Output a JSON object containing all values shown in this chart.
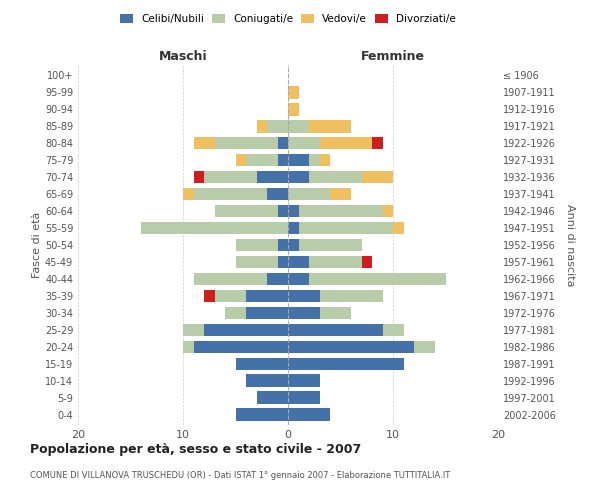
{
  "age_groups": [
    "0-4",
    "5-9",
    "10-14",
    "15-19",
    "20-24",
    "25-29",
    "30-34",
    "35-39",
    "40-44",
    "45-49",
    "50-54",
    "55-59",
    "60-64",
    "65-69",
    "70-74",
    "75-79",
    "80-84",
    "85-89",
    "90-94",
    "95-99",
    "100+"
  ],
  "birth_years": [
    "2002-2006",
    "1997-2001",
    "1992-1996",
    "1987-1991",
    "1982-1986",
    "1977-1981",
    "1972-1976",
    "1967-1971",
    "1962-1966",
    "1957-1961",
    "1952-1956",
    "1947-1951",
    "1942-1946",
    "1937-1941",
    "1932-1936",
    "1927-1931",
    "1922-1926",
    "1917-1921",
    "1912-1916",
    "1907-1911",
    "≤ 1906"
  ],
  "maschi": {
    "celibi": [
      5,
      3,
      4,
      5,
      9,
      8,
      4,
      4,
      2,
      1,
      1,
      0,
      1,
      2,
      3,
      1,
      1,
      0,
      0,
      0,
      0
    ],
    "coniugati": [
      0,
      0,
      0,
      0,
      1,
      2,
      2,
      3,
      7,
      4,
      4,
      14,
      6,
      7,
      5,
      3,
      6,
      2,
      0,
      0,
      0
    ],
    "vedovi": [
      0,
      0,
      0,
      0,
      0,
      0,
      0,
      0,
      0,
      0,
      0,
      0,
      0,
      1,
      0,
      1,
      2,
      1,
      0,
      0,
      0
    ],
    "divorziati": [
      0,
      0,
      0,
      0,
      0,
      0,
      0,
      1,
      0,
      0,
      0,
      0,
      0,
      0,
      1,
      0,
      0,
      0,
      0,
      0,
      0
    ]
  },
  "femmine": {
    "nubili": [
      4,
      3,
      3,
      11,
      12,
      9,
      3,
      3,
      2,
      2,
      1,
      1,
      1,
      0,
      2,
      2,
      0,
      0,
      0,
      0,
      0
    ],
    "coniugate": [
      0,
      0,
      0,
      0,
      2,
      2,
      3,
      6,
      13,
      5,
      6,
      9,
      8,
      4,
      5,
      1,
      3,
      2,
      0,
      0,
      0
    ],
    "vedove": [
      0,
      0,
      0,
      0,
      0,
      0,
      0,
      0,
      0,
      0,
      0,
      1,
      1,
      2,
      3,
      1,
      5,
      4,
      1,
      1,
      0
    ],
    "divorziate": [
      0,
      0,
      0,
      0,
      0,
      0,
      0,
      0,
      0,
      1,
      0,
      0,
      0,
      0,
      0,
      0,
      1,
      0,
      0,
      0,
      0
    ]
  },
  "colors": {
    "celibi_nubili": "#4472a8",
    "coniugati": "#b8ccaa",
    "vedovi": "#f0c060",
    "divorziati": "#cc2020"
  },
  "title": "Popolazione per età, sesso e stato civile - 2007",
  "subtitle": "COMUNE DI VILLANOVA TRUSCHEDU (OR) - Dati ISTAT 1° gennaio 2007 - Elaborazione TUTTITALIA.IT",
  "ylabel_left": "Fasce di età",
  "ylabel_right": "Anni di nascita",
  "xlim": 20,
  "background_color": "#ffffff",
  "grid_color": "#cccccc"
}
